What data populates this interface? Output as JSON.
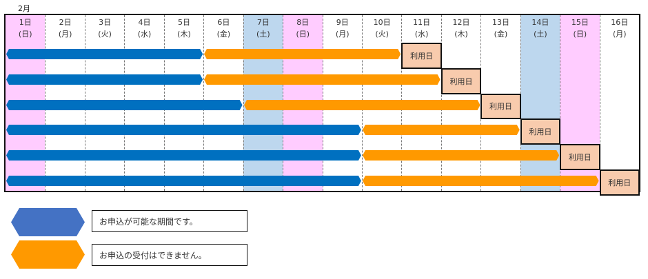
{
  "month_label": "2月",
  "days": [
    {
      "date": "1日",
      "weekday": "(日)",
      "type": "sun"
    },
    {
      "date": "2日",
      "weekday": "(月)",
      "type": "wd"
    },
    {
      "date": "3日",
      "weekday": "(火)",
      "type": "wd"
    },
    {
      "date": "4日",
      "weekday": "(水)",
      "type": "wd"
    },
    {
      "date": "5日",
      "weekday": "(木)",
      "type": "wd"
    },
    {
      "date": "6日",
      "weekday": "(金)",
      "type": "wd"
    },
    {
      "date": "7日",
      "weekday": "(土)",
      "type": "sat"
    },
    {
      "date": "8日",
      "weekday": "(日)",
      "type": "sun"
    },
    {
      "date": "9日",
      "weekday": "(月)",
      "type": "wd"
    },
    {
      "date": "10日",
      "weekday": "(火)",
      "type": "wd"
    },
    {
      "date": "11日",
      "weekday": "(水)",
      "type": "wd"
    },
    {
      "date": "12日",
      "weekday": "(木)",
      "type": "wd"
    },
    {
      "date": "13日",
      "weekday": "(金)",
      "type": "wd"
    },
    {
      "date": "14日",
      "weekday": "(土)",
      "type": "sat"
    },
    {
      "date": "15日",
      "weekday": "(日)",
      "type": "sun"
    },
    {
      "date": "16日",
      "weekday": "(月)",
      "type": "wd"
    }
  ],
  "rows": [
    {
      "apply_days": [
        1,
        5
      ],
      "closed_days": [
        6,
        10
      ],
      "use_day": 11,
      "use_label": "利用日"
    },
    {
      "apply_days": [
        1,
        5
      ],
      "closed_days": [
        6,
        11
      ],
      "use_day": 12,
      "use_label": "利用日"
    },
    {
      "apply_days": [
        1,
        6
      ],
      "closed_days": [
        7,
        12
      ],
      "use_day": 13,
      "use_label": "利用日"
    },
    {
      "apply_days": [
        1,
        9
      ],
      "closed_days": [
        10,
        13
      ],
      "use_day": 14,
      "use_label": "利用日"
    },
    {
      "apply_days": [
        1,
        9
      ],
      "closed_days": [
        10,
        14
      ],
      "use_day": 15,
      "use_label": "利用日"
    },
    {
      "apply_days": [
        1,
        9
      ],
      "closed_days": [
        10,
        15
      ],
      "use_day": 16,
      "use_label": "利用日"
    }
  ],
  "legend": {
    "apply": {
      "text": "お申込が可能な期間です。",
      "color": "#4472c4"
    },
    "closed": {
      "text": "お申込の受付はできません。",
      "color": "#ff9900"
    }
  },
  "colors": {
    "sun": "#ffccff",
    "sat": "#bdd7ee",
    "wd": "#ffffff",
    "apply_bar": "#0070c0",
    "closed_bar": "#ff9900",
    "use_fill": "#f8cbad"
  }
}
